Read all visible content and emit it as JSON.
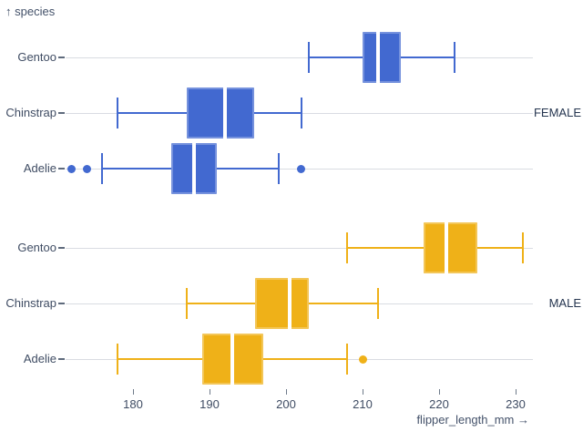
{
  "y_axis_title": "↑ species",
  "x_axis_label": "flipper_length_mm →",
  "chart_data": {
    "type": "boxplot",
    "title": "",
    "xlabel": "flipper_length_mm",
    "ylabel": "species",
    "x_ticks": [
      180,
      190,
      200,
      210,
      220,
      230
    ],
    "x_domain": [
      171,
      232
    ],
    "grid": true,
    "legend": "none",
    "facet_label_position": "right",
    "facets": [
      {
        "label": "FEMALE",
        "color": "#4269d0",
        "rows": [
          {
            "species": "Gentoo",
            "whisker_min": 203,
            "q1": 210,
            "median": 212,
            "q3": 215,
            "whisker_max": 222,
            "outliers": []
          },
          {
            "species": "Chinstrap",
            "whisker_min": 178,
            "q1": 187,
            "median": 192,
            "q3": 195.8,
            "whisker_max": 202,
            "outliers": []
          },
          {
            "species": "Adelie",
            "whisker_min": 176,
            "q1": 185,
            "median": 188,
            "q3": 191,
            "whisker_max": 199,
            "outliers": [
              172,
              174,
              202
            ]
          }
        ]
      },
      {
        "label": "MALE",
        "color": "#efb118",
        "rows": [
          {
            "species": "Gentoo",
            "whisker_min": 208,
            "q1": 218,
            "median": 221,
            "q3": 225,
            "whisker_max": 231,
            "outliers": []
          },
          {
            "species": "Chinstrap",
            "whisker_min": 187,
            "q1": 196,
            "median": 200.5,
            "q3": 203,
            "whisker_max": 212,
            "outliers": []
          },
          {
            "species": "Adelie",
            "whisker_min": 178,
            "q1": 189,
            "median": 193,
            "q3": 197,
            "whisker_max": 208,
            "outliers": [
              210
            ]
          }
        ]
      }
    ],
    "colors": {
      "female": "#4269d0",
      "male": "#efb118",
      "grid_line": "#d9dce2",
      "axis_text": "#3f4c63",
      "facet_text": "#263650",
      "median": "#ffffff"
    }
  }
}
